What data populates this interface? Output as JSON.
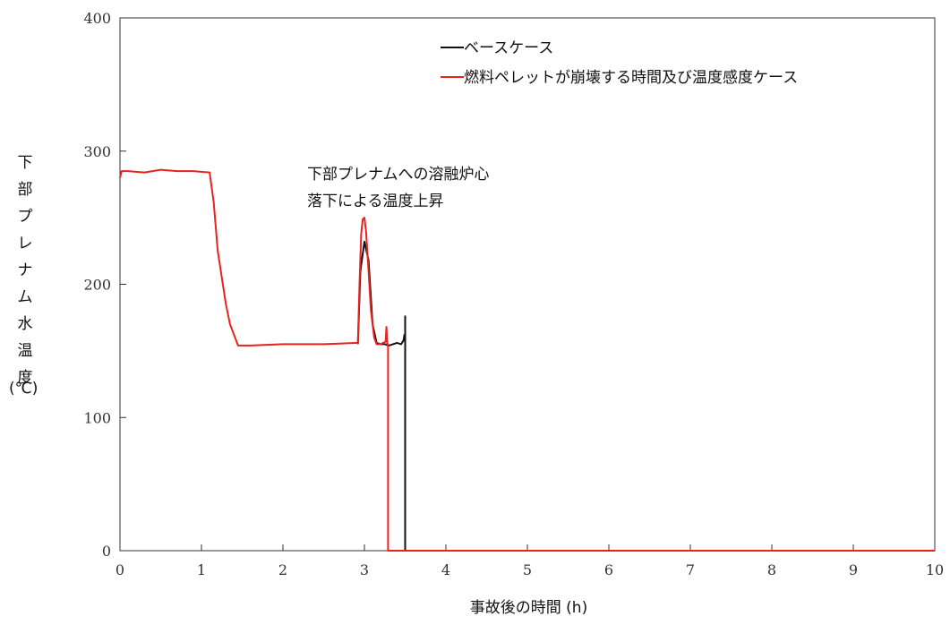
{
  "chart_data": {
    "type": "line",
    "xlabel": "事故後の時間 (h)",
    "ylabel": "下部プレナム水温度",
    "yunit": "(℃)",
    "xlim": [
      0,
      10
    ],
    "ylim": [
      0,
      400
    ],
    "xticks": [
      "0",
      "1",
      "2",
      "3",
      "4",
      "5",
      "6",
      "7",
      "8",
      "9",
      "10"
    ],
    "yticks": [
      "0",
      "100",
      "200",
      "300",
      "400"
    ],
    "grid": false,
    "legend_position": "top-right",
    "annotation": [
      "下部プレナムへの溶融炉心",
      "落下による温度上昇"
    ],
    "series": [
      {
        "name": "ベースケース",
        "color": "#111111",
        "x": [
          2.92,
          2.95,
          3.0,
          3.05,
          3.1,
          3.15,
          3.2,
          3.25,
          3.3,
          3.35,
          3.4,
          3.45,
          3.48,
          3.49,
          3.5,
          3.5,
          3.5,
          10
        ],
        "y": [
          155,
          210,
          232,
          218,
          170,
          156,
          155,
          155,
          154,
          155,
          156,
          155,
          158,
          162,
          156,
          176,
          0,
          0
        ]
      },
      {
        "name": "燃料ペレットが崩壊する時間及び温度感度ケース",
        "color": "#e8231e",
        "x": [
          0,
          0.02,
          0.1,
          0.3,
          0.5,
          0.7,
          0.9,
          1.1,
          1.15,
          1.2,
          1.3,
          1.35,
          1.45,
          1.6,
          2.0,
          2.5,
          2.92,
          2.94,
          2.96,
          2.98,
          3.0,
          3.02,
          3.05,
          3.08,
          3.12,
          3.15,
          3.2,
          3.26,
          3.27,
          3.28,
          3.29,
          3.29,
          10
        ],
        "y": [
          280,
          285,
          285,
          284,
          286,
          285,
          285,
          284,
          262,
          225,
          185,
          170,
          154,
          154,
          155,
          155,
          156,
          200,
          238,
          249,
          250,
          240,
          210,
          180,
          160,
          155,
          155,
          157,
          168,
          155,
          155,
          0,
          0
        ]
      }
    ]
  }
}
